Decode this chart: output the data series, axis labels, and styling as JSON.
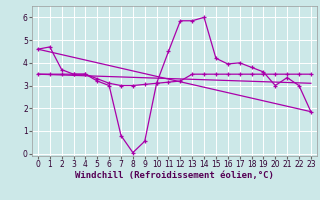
{
  "background_color": "#cce8e8",
  "grid_color": "#ffffff",
  "line_color": "#aa00aa",
  "xlabel": "Windchill (Refroidissement éolien,°C)",
  "xlabel_fontsize": 6.5,
  "xlim": [
    -0.5,
    23.5
  ],
  "ylim": [
    -0.1,
    6.5
  ],
  "yticks": [
    0,
    1,
    2,
    3,
    4,
    5,
    6
  ],
  "xticks": [
    0,
    1,
    2,
    3,
    4,
    5,
    6,
    7,
    8,
    9,
    10,
    11,
    12,
    13,
    14,
    15,
    16,
    17,
    18,
    19,
    20,
    21,
    22,
    23
  ],
  "tick_fontsize": 5.5,
  "line1_x": [
    0,
    1,
    2,
    3,
    4,
    5,
    6,
    7,
    8,
    9,
    10,
    11,
    12,
    13,
    14,
    15,
    16,
    17,
    18,
    19,
    20,
    21,
    22,
    23
  ],
  "line1_y": [
    4.6,
    4.7,
    3.7,
    3.5,
    3.5,
    3.2,
    3.0,
    0.8,
    0.05,
    0.55,
    3.1,
    4.5,
    5.85,
    5.85,
    6.0,
    4.2,
    3.95,
    4.0,
    3.8,
    3.6,
    3.0,
    3.35,
    3.0,
    1.85
  ],
  "line2_x": [
    0,
    1,
    2,
    3,
    4,
    5,
    6,
    7,
    8,
    9,
    10,
    11,
    12,
    13,
    14,
    15,
    16,
    17,
    18,
    19,
    20,
    21,
    22,
    23
  ],
  "line2_y": [
    3.5,
    3.5,
    3.5,
    3.5,
    3.5,
    3.3,
    3.1,
    3.0,
    3.0,
    3.05,
    3.1,
    3.15,
    3.2,
    3.5,
    3.5,
    3.5,
    3.5,
    3.5,
    3.5,
    3.5,
    3.5,
    3.5,
    3.5,
    3.5
  ],
  "line3_x": [
    0,
    23
  ],
  "line3_y": [
    4.6,
    1.85
  ],
  "line4_x": [
    0,
    23
  ],
  "line4_y": [
    3.5,
    3.1
  ]
}
